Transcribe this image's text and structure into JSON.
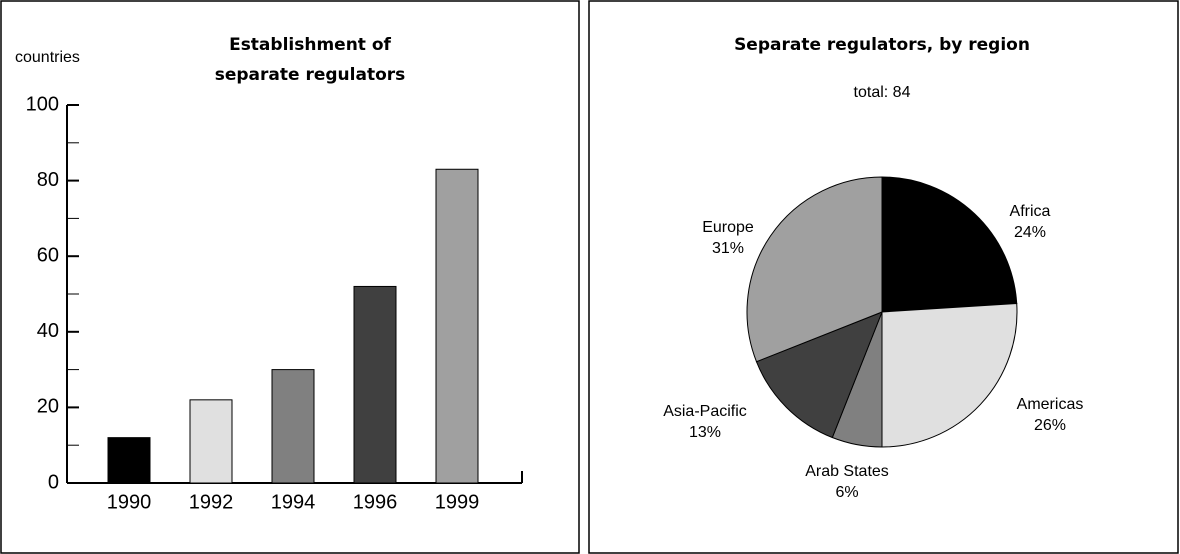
{
  "chart_data": [
    {
      "type": "bar",
      "title": "Establishment of separate regulators",
      "y_label": "countries",
      "categories": [
        "1990",
        "1992",
        "1994",
        "1996",
        "1999"
      ],
      "values": [
        12,
        22,
        30,
        52,
        83
      ],
      "colors": [
        "#000000",
        "#e0e0e0",
        "#808080",
        "#404040",
        "#a0a0a0"
      ],
      "ylim": [
        0,
        100
      ],
      "yticks": [
        0,
        20,
        40,
        60,
        80,
        100
      ],
      "yminorticks": [
        10,
        30,
        50,
        70,
        90
      ]
    },
    {
      "type": "pie",
      "title": "Separate regulators, by region",
      "subtitle": "total: 84",
      "categories": [
        "Africa",
        "Americas",
        "Arab States",
        "Asia-Pacific",
        "Europe"
      ],
      "values": [
        24,
        26,
        6,
        13,
        31
      ],
      "value_labels": [
        "24%",
        "26%",
        "6%",
        "13%",
        "31%"
      ],
      "colors": [
        "#000000",
        "#e0e0e0",
        "#808080",
        "#404040",
        "#a0a0a0"
      ]
    }
  ]
}
